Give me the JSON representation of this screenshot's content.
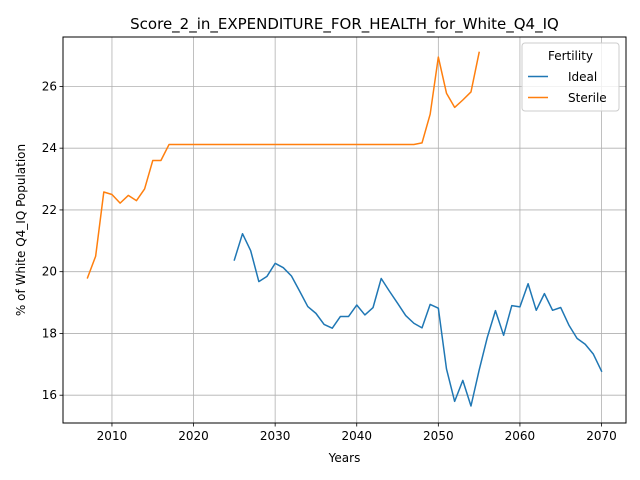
{
  "chart_data": {
    "type": "line",
    "title": "Score_2_in_EXPENDITURE_FOR_HEALTH_for_White_Q4_IQ",
    "xlabel": "Years",
    "ylabel": "% of White Q4_IQ Population",
    "xlim": [
      2004,
      2073
    ],
    "ylim": [
      15.1,
      27.6
    ],
    "xticks": [
      2010,
      2020,
      2030,
      2040,
      2050,
      2060,
      2070
    ],
    "yticks": [
      16,
      18,
      20,
      22,
      24,
      26
    ],
    "grid": true,
    "legend": {
      "title": "Fertility",
      "placement": "top-right"
    },
    "series": [
      {
        "name": "Ideal",
        "color": "#1f77b4",
        "x": [
          2025,
          2026,
          2027,
          2028,
          2029,
          2030,
          2031,
          2032,
          2033,
          2034,
          2035,
          2036,
          2037,
          2038,
          2039,
          2040,
          2041,
          2042,
          2043,
          2044,
          2045,
          2046,
          2047,
          2048,
          2049,
          2050,
          2051,
          2052,
          2053,
          2054,
          2055,
          2056,
          2057,
          2058,
          2059,
          2060,
          2061,
          2062,
          2063,
          2064,
          2065,
          2066,
          2067,
          2068,
          2069,
          2070
        ],
        "values": [
          20.38,
          21.23,
          20.68,
          19.68,
          19.85,
          20.27,
          20.13,
          19.86,
          19.37,
          18.87,
          18.65,
          18.29,
          18.17,
          18.55,
          18.55,
          18.92,
          18.6,
          18.84,
          19.78,
          19.37,
          18.98,
          18.58,
          18.33,
          18.18,
          18.94,
          18.82,
          16.85,
          15.8,
          16.48,
          15.65,
          16.81,
          17.87,
          18.74,
          17.94,
          18.9,
          18.86,
          19.61,
          18.75,
          19.29,
          18.75,
          18.84,
          18.27,
          17.84,
          17.65,
          17.33,
          16.78
        ]
      },
      {
        "name": "Sterile",
        "color": "#ff7f0e",
        "x": [
          2007,
          2008,
          2009,
          2010,
          2011,
          2012,
          2013,
          2014,
          2015,
          2016,
          2017,
          2018,
          2019,
          2020,
          2021,
          2022,
          2023,
          2024,
          2025,
          2026,
          2027,
          2028,
          2029,
          2030,
          2031,
          2032,
          2033,
          2034,
          2035,
          2036,
          2037,
          2038,
          2039,
          2040,
          2041,
          2042,
          2043,
          2044,
          2045,
          2046,
          2047,
          2048,
          2049,
          2050,
          2051,
          2052,
          2053,
          2054,
          2055
        ],
        "values": [
          19.8,
          20.5,
          22.58,
          22.5,
          22.22,
          22.47,
          22.3,
          22.68,
          23.6,
          23.6,
          24.12,
          24.12,
          24.12,
          24.12,
          24.12,
          24.12,
          24.12,
          24.12,
          24.12,
          24.12,
          24.12,
          24.12,
          24.12,
          24.12,
          24.12,
          24.12,
          24.12,
          24.12,
          24.12,
          24.12,
          24.12,
          24.12,
          24.12,
          24.12,
          24.12,
          24.12,
          24.12,
          24.12,
          24.12,
          24.12,
          24.12,
          24.17,
          25.1,
          26.95,
          25.78,
          25.32,
          25.56,
          25.82,
          27.1
        ]
      }
    ]
  }
}
